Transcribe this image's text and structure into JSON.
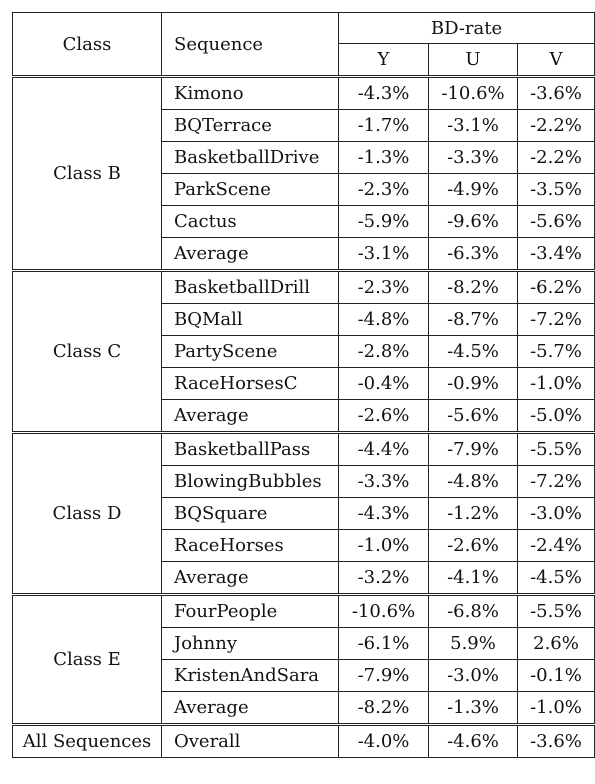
{
  "header": {
    "class": "Class",
    "sequence": "Sequence",
    "bdrate": "BD-rate",
    "y": "Y",
    "u": "U",
    "v": "V"
  },
  "groups": [
    {
      "class": "Class B",
      "rows": [
        {
          "seq": "Kimono",
          "y": "-4.3%",
          "u": "-10.6%",
          "v": "-3.6%"
        },
        {
          "seq": "BQTerrace",
          "y": "-1.7%",
          "u": "-3.1%",
          "v": "-2.2%"
        },
        {
          "seq": "BasketballDrive",
          "y": "-1.3%",
          "u": "-3.3%",
          "v": "-2.2%"
        },
        {
          "seq": "ParkScene",
          "y": "-2.3%",
          "u": "-4.9%",
          "v": "-3.5%"
        },
        {
          "seq": "Cactus",
          "y": "-5.9%",
          "u": "-9.6%",
          "v": "-5.6%"
        },
        {
          "seq": "Average",
          "y": "-3.1%",
          "u": "-6.3%",
          "v": "-3.4%"
        }
      ]
    },
    {
      "class": "Class C",
      "rows": [
        {
          "seq": "BasketballDrill",
          "y": "-2.3%",
          "u": "-8.2%",
          "v": "-6.2%"
        },
        {
          "seq": "BQMall",
          "y": "-4.8%",
          "u": "-8.7%",
          "v": "-7.2%"
        },
        {
          "seq": "PartyScene",
          "y": "-2.8%",
          "u": "-4.5%",
          "v": "-5.7%"
        },
        {
          "seq": "RaceHorsesC",
          "y": "-0.4%",
          "u": "-0.9%",
          "v": "-1.0%"
        },
        {
          "seq": "Average",
          "y": "-2.6%",
          "u": "-5.6%",
          "v": "-5.0%"
        }
      ]
    },
    {
      "class": "Class D",
      "rows": [
        {
          "seq": "BasketballPass",
          "y": "-4.4%",
          "u": "-7.9%",
          "v": "-5.5%"
        },
        {
          "seq": "BlowingBubbles",
          "y": "-3.3%",
          "u": "-4.8%",
          "v": "-7.2%"
        },
        {
          "seq": "BQSquare",
          "y": "-4.3%",
          "u": "-1.2%",
          "v": "-3.0%"
        },
        {
          "seq": "RaceHorses",
          "y": "-1.0%",
          "u": "-2.6%",
          "v": "-2.4%"
        },
        {
          "seq": "Average",
          "y": "-3.2%",
          "u": "-4.1%",
          "v": "-4.5%"
        }
      ]
    },
    {
      "class": "Class E",
      "rows": [
        {
          "seq": "FourPeople",
          "y": "-10.6%",
          "u": "-6.8%",
          "v": "-5.5%"
        },
        {
          "seq": "Johnny",
          "y": "-6.1%",
          "u": "5.9%",
          "v": "2.6%"
        },
        {
          "seq": "KristenAndSara",
          "y": "-7.9%",
          "u": "-3.0%",
          "v": "-0.1%"
        },
        {
          "seq": "Average",
          "y": "-8.2%",
          "u": "-1.3%",
          "v": "-1.0%"
        }
      ]
    }
  ],
  "overall": {
    "class": "All Sequences",
    "seq": "Overall",
    "y": "-4.0%",
    "u": "-4.6%",
    "v": "-3.6%"
  }
}
